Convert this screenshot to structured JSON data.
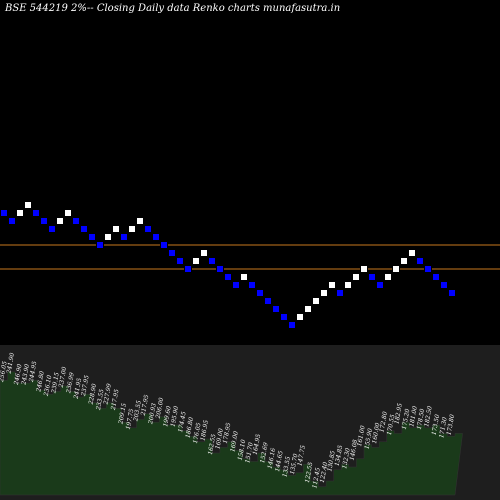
{
  "title": "BSE 544219 2%-- Closing Daily data  Renko  charts munafasutra.in",
  "colors": {
    "background": "#000000",
    "upBrick": "#ffffff",
    "downBrick": "#0000ff",
    "brickBorder": "#000000",
    "levelLine": "#c8781e",
    "panel": "#1e1e1e",
    "volumeArea": "#1a3a1a",
    "volumeLine": "#333333"
  },
  "chart_data": {
    "type": "renko",
    "bricks": [
      {
        "dir": "down",
        "step": 0
      },
      {
        "dir": "down",
        "step": 1
      },
      {
        "dir": "up",
        "step": 0
      },
      {
        "dir": "up",
        "step": -1
      },
      {
        "dir": "down",
        "step": 0
      },
      {
        "dir": "down",
        "step": 1
      },
      {
        "dir": "down",
        "step": 2
      },
      {
        "dir": "up",
        "step": 1
      },
      {
        "dir": "up",
        "step": 0
      },
      {
        "dir": "down",
        "step": 1
      },
      {
        "dir": "down",
        "step": 2
      },
      {
        "dir": "down",
        "step": 3
      },
      {
        "dir": "down",
        "step": 4
      },
      {
        "dir": "up",
        "step": 3
      },
      {
        "dir": "up",
        "step": 2
      },
      {
        "dir": "down",
        "step": 3
      },
      {
        "dir": "up",
        "step": 2
      },
      {
        "dir": "up",
        "step": 1
      },
      {
        "dir": "down",
        "step": 2
      },
      {
        "dir": "down",
        "step": 3
      },
      {
        "dir": "down",
        "step": 4
      },
      {
        "dir": "down",
        "step": 5
      },
      {
        "dir": "down",
        "step": 6
      },
      {
        "dir": "down",
        "step": 7
      },
      {
        "dir": "up",
        "step": 6
      },
      {
        "dir": "up",
        "step": 5
      },
      {
        "dir": "down",
        "step": 6
      },
      {
        "dir": "down",
        "step": 7
      },
      {
        "dir": "down",
        "step": 8
      },
      {
        "dir": "down",
        "step": 9
      },
      {
        "dir": "up",
        "step": 8
      },
      {
        "dir": "down",
        "step": 9
      },
      {
        "dir": "down",
        "step": 10
      },
      {
        "dir": "down",
        "step": 11
      },
      {
        "dir": "down",
        "step": 12
      },
      {
        "dir": "down",
        "step": 13
      },
      {
        "dir": "down",
        "step": 14
      },
      {
        "dir": "up",
        "step": 13
      },
      {
        "dir": "up",
        "step": 12
      },
      {
        "dir": "up",
        "step": 11
      },
      {
        "dir": "up",
        "step": 10
      },
      {
        "dir": "up",
        "step": 9
      },
      {
        "dir": "down",
        "step": 10
      },
      {
        "dir": "up",
        "step": 9
      },
      {
        "dir": "up",
        "step": 8
      },
      {
        "dir": "up",
        "step": 7
      },
      {
        "dir": "down",
        "step": 8
      },
      {
        "dir": "down",
        "step": 9
      },
      {
        "dir": "up",
        "step": 8
      },
      {
        "dir": "up",
        "step": 7
      },
      {
        "dir": "up",
        "step": 6
      },
      {
        "dir": "up",
        "step": 5
      },
      {
        "dir": "down",
        "step": 6
      },
      {
        "dir": "down",
        "step": 7
      },
      {
        "dir": "down",
        "step": 8
      },
      {
        "dir": "down",
        "step": 9
      },
      {
        "dir": "down",
        "step": 10
      }
    ],
    "levels": [
      1,
      4
    ],
    "volume_labels": [
      "256.05",
      "241.90",
      "246.90",
      "243.90",
      "244.95",
      "246.80",
      "236.10",
      "239.15",
      "237.00",
      "236.99",
      "241.95",
      "237.95",
      "228.90",
      "233.55",
      "227.99",
      "217.95",
      "209.15",
      "197.75",
      "203.55",
      "217.95",
      "200.93",
      "206.00",
      "199.60",
      "195.90",
      "174.45",
      "186.80",
      "176.05",
      "186.95",
      "162.55",
      "169.00",
      "178.95",
      "169.00",
      "158.10",
      "151.70",
      "164.95",
      "152.69",
      "146.16",
      "144.65",
      "133.55",
      "135.70",
      "147.75",
      "122.55",
      "112.45",
      "122.40",
      "130.85",
      "134.85",
      "132.30",
      "146.08",
      "161.00",
      "155.90",
      "160.00",
      "172.80",
      "170.55",
      "182.95",
      "175.20",
      "181.00",
      "178.50",
      "182.50",
      "173.50",
      "171.30",
      "173.80"
    ],
    "volume_levels": [
      0.82,
      0.88,
      0.8,
      0.8,
      0.82,
      0.75,
      0.72,
      0.74,
      0.78,
      0.74,
      0.7,
      0.72,
      0.66,
      0.62,
      0.66,
      0.62,
      0.52,
      0.48,
      0.54,
      0.58,
      0.52,
      0.56,
      0.5,
      0.5,
      0.46,
      0.42,
      0.38,
      0.4,
      0.3,
      0.34,
      0.38,
      0.32,
      0.26,
      0.24,
      0.3,
      0.24,
      0.2,
      0.18,
      0.14,
      0.16,
      0.22,
      0.1,
      0.06,
      0.1,
      0.18,
      0.22,
      0.2,
      0.26,
      0.36,
      0.34,
      0.38,
      0.46,
      0.44,
      0.52,
      0.48,
      0.5,
      0.48,
      0.5,
      0.44,
      0.42,
      0.44
    ]
  }
}
